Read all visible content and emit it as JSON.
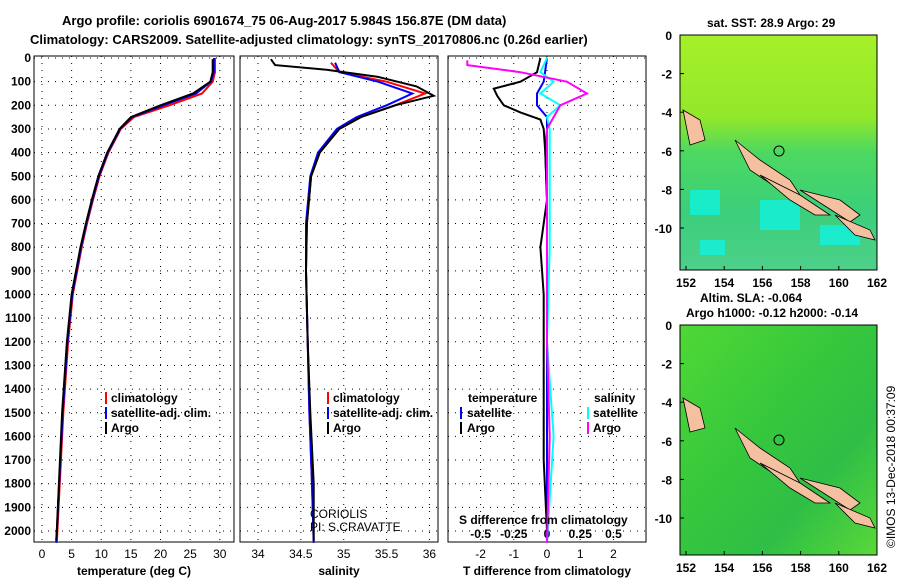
{
  "title_line1": "Argo profile: coriolis 6901674_75 06-Aug-2017 5.984S 156.87E (DM data)",
  "title_line2": "Climatology: CARS2009. Satellite-adjusted climatology: synTS_20170806.nc (0.26d earlier)",
  "colors": {
    "climatology": "#ff0000",
    "satellite": "#0000ff",
    "argo": "#000000",
    "sal_satellite": "#00ffff",
    "sal_argo": "#ff00ff"
  },
  "chart_data": [
    {
      "type": "line",
      "xlabel": "temperature (deg C)",
      "ylabel": "",
      "xlim": [
        -2,
        32
      ],
      "ylim": [
        2050,
        0
      ],
      "xticks": [
        "0",
        "5",
        "10",
        "15",
        "20",
        "25",
        "30"
      ],
      "xtick_values": [
        0,
        5,
        10,
        15,
        20,
        25,
        30
      ],
      "yticks": [
        "0",
        "100",
        "200",
        "300",
        "400",
        "500",
        "600",
        "700",
        "800",
        "900",
        "1000",
        "1100",
        "1200",
        "1300",
        "1400",
        "1500",
        "1600",
        "1700",
        "1800",
        "1900",
        "2000"
      ],
      "legend": [
        "climatology",
        "satellite-adj. clim.",
        "Argo"
      ],
      "series": [
        {
          "name": "climatology",
          "depth": [
            0,
            60,
            100,
            150,
            200,
            250,
            300,
            400,
            500,
            600,
            700,
            800,
            1000,
            1200,
            1500,
            2000,
            2050
          ],
          "values": [
            29.2,
            29.2,
            28.8,
            27,
            21.5,
            15.5,
            13.3,
            11.2,
            9.7,
            8.6,
            7.6,
            6.7,
            5.2,
            4.4,
            3.6,
            2.6,
            2.5
          ]
        },
        {
          "name": "satellite-adj. clim.",
          "depth": [
            0,
            60,
            100,
            150,
            200,
            250,
            300,
            400,
            500,
            600,
            700,
            800,
            1000,
            1200,
            1500,
            2000,
            2050
          ],
          "values": [
            29,
            29,
            28.5,
            26,
            20.5,
            15.2,
            13.2,
            11.1,
            9.6,
            8.5,
            7.5,
            6.6,
            5.1,
            4.3,
            3.5,
            2.5,
            2.4
          ]
        },
        {
          "name": "Argo",
          "depth": [
            5,
            60,
            100,
            150,
            200,
            250,
            300,
            400,
            500,
            600,
            700,
            800,
            1000,
            1200,
            1500,
            2000,
            2040
          ],
          "values": [
            28.8,
            28.8,
            28.4,
            25.5,
            20,
            15,
            13.1,
            11,
            9.5,
            8.4,
            7.4,
            6.5,
            5,
            4.2,
            3.4,
            2.5,
            2.4
          ]
        }
      ]
    },
    {
      "type": "line",
      "xlabel": "salinity",
      "xlim": [
        33.8,
        36.2
      ],
      "ylim": [
        2050,
        0
      ],
      "xticks": [
        "34",
        "34.5",
        "35",
        "35.5",
        "36"
      ],
      "xtick_values": [
        34,
        34.5,
        35,
        35.5,
        36
      ],
      "legend": [
        "climatology",
        "satellite-adj. clim.",
        "Argo"
      ],
      "annotation": [
        "CORIOLIS",
        "PI: S.CRAVATTE"
      ],
      "series": [
        {
          "name": "climatology",
          "depth": [
            20,
            60,
            100,
            150,
            200,
            250,
            300,
            400,
            500,
            700,
            900,
            1200,
            1500,
            1800,
            2050
          ],
          "values": [
            34.85,
            34.95,
            35.5,
            35.95,
            35.6,
            35.2,
            34.95,
            34.72,
            34.62,
            34.57,
            34.56,
            34.58,
            34.6,
            34.63,
            34.65
          ]
        },
        {
          "name": "satellite-adj. clim.",
          "depth": [
            20,
            60,
            100,
            150,
            200,
            250,
            300,
            400,
            500,
            700,
            900,
            1200,
            1500,
            1800,
            2050
          ],
          "values": [
            34.9,
            34.95,
            35.4,
            35.8,
            35.5,
            35.15,
            34.92,
            34.7,
            34.61,
            34.56,
            34.56,
            34.58,
            34.6,
            34.63,
            34.65
          ]
        },
        {
          "name": "Argo",
          "depth": [
            5,
            30,
            50,
            80,
            120,
            160,
            200,
            250,
            300,
            400,
            500,
            700,
            900,
            1200,
            1500,
            1800,
            2040
          ],
          "values": [
            34.15,
            34.2,
            34.8,
            35.4,
            35.85,
            36.05,
            35.6,
            35.2,
            34.95,
            34.72,
            34.62,
            34.57,
            34.56,
            34.58,
            34.61,
            34.65,
            34.65
          ]
        }
      ]
    },
    {
      "type": "line",
      "xlabel": "T difference from climatology",
      "xlabel2": "S difference from climatology",
      "xlim": [
        -3,
        3
      ],
      "ylim": [
        2050,
        0
      ],
      "xticks": [
        "-2",
        "-1",
        "0",
        "1",
        "2"
      ],
      "xtick_values": [
        -2,
        -1,
        0,
        1,
        2
      ],
      "xticks2": [
        "-0.5",
        "-0.25",
        "0",
        "0.25",
        "0.5"
      ],
      "xtick2_values": [
        -0.5,
        -0.25,
        0,
        0.25,
        0.5
      ],
      "legend_temperature": [
        "temperature",
        "satellite",
        "Argo"
      ],
      "legend_salinity": [
        "salinity",
        "satellite",
        "Argo"
      ],
      "series": [
        {
          "name": "temperature satellite",
          "depth": [
            0,
            100,
            150,
            200,
            250,
            300,
            400,
            600,
            800,
            1000,
            1500,
            2000,
            2050
          ],
          "values": [
            0,
            -0.1,
            -0.3,
            -0.3,
            0,
            0,
            -0.05,
            0,
            0,
            0,
            0,
            0,
            0
          ]
        },
        {
          "name": "temperature Argo",
          "depth": [
            0,
            60,
            100,
            130,
            160,
            200,
            230,
            260,
            300,
            400,
            600,
            800,
            1000,
            1300,
            1700,
            2000
          ],
          "values": [
            -0.2,
            -0.3,
            -0.8,
            -1.6,
            -1.5,
            -1.3,
            -0.8,
            -0.2,
            -0.1,
            -0.05,
            0,
            -0.2,
            -0.1,
            -0.1,
            -0.1,
            0
          ]
        },
        {
          "name": "salinity satellite",
          "depth": [
            0,
            60,
            100,
            150,
            200,
            250,
            300,
            500,
            800,
            1200,
            1600,
            2050
          ],
          "values": [
            0,
            -0.05,
            0.05,
            -0.05,
            0.1,
            0,
            0.02,
            0.02,
            0.02,
            0,
            0.05,
            0
          ]
        },
        {
          "name": "salinity Argo",
          "depth": [
            10,
            30,
            60,
            100,
            150,
            200,
            250,
            300,
            500,
            800,
            1200,
            1600,
            2050
          ],
          "values": [
            -0.6,
            -0.6,
            -0.2,
            0.15,
            0.3,
            0.1,
            0.05,
            0,
            0,
            0,
            0,
            0.02,
            0
          ]
        }
      ]
    }
  ],
  "map_sst": {
    "title": "sat. SST: 28.9 Argo: 29",
    "xticks": [
      "152",
      "154",
      "156",
      "158",
      "160",
      "162"
    ],
    "yticks": [
      "0",
      "-2",
      "-4",
      "-6",
      "-8",
      "-10"
    ],
    "argo_lon": 156.87,
    "argo_lat": -5.984
  },
  "map_sla": {
    "title1": "Altim. SLA: -0.064",
    "title2": "Argo h1000: -0.12 h2000: -0.14",
    "xticks": [
      "152",
      "154",
      "156",
      "158",
      "160",
      "162"
    ],
    "yticks": [
      "0",
      "-2",
      "-4",
      "-6",
      "-8",
      "-10"
    ],
    "argo_lon": 156.87,
    "argo_lat": -5.984
  },
  "credit": "©IMOS 13-Dec-2018 00:37:09"
}
